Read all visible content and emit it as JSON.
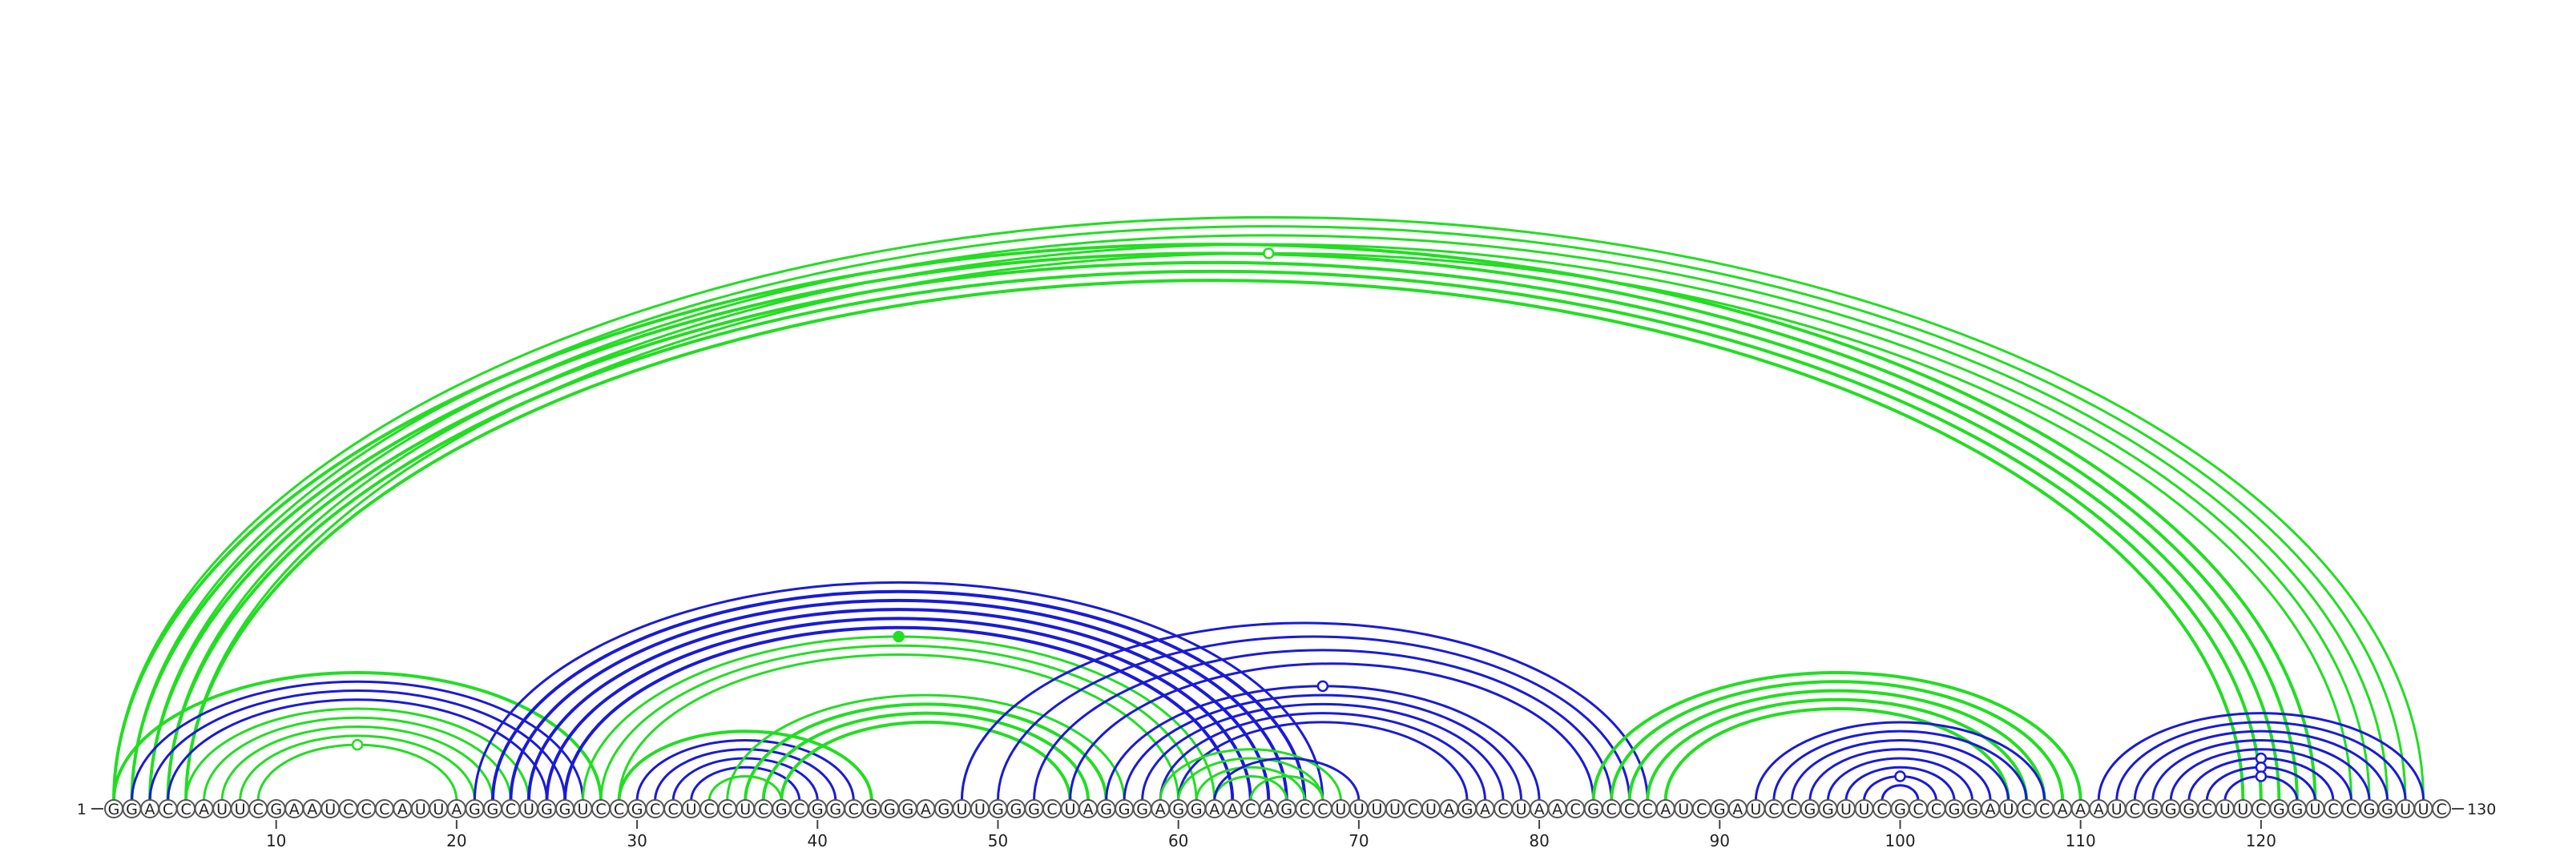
{
  "sequence": "GGACCAUUCGAAUCCCAUUAGGCUGGUCCGCCUCCUCGCGGCGGGAGUUGGGCUAGGGAGGAACAGCCUUUUCUAGACUAACGCCCAUCGAUCCGGUUCGCCGGAUCCAAAUCGGGCUUCGGUCCGGUUC",
  "start_label": "1",
  "end_label": "130",
  "ticks": [
    "10",
    "20",
    "30",
    "40",
    "50",
    "60",
    "70",
    "80",
    "90",
    "100",
    "110",
    "120"
  ],
  "colors": {
    "green": "#22dd22",
    "blue": "#1a1ad8"
  },
  "arcs": [
    {
      "i": 1,
      "j": 129,
      "c": "green",
      "w": 3
    },
    {
      "i": 2,
      "j": 128,
      "c": "green",
      "w": 3
    },
    {
      "i": 3,
      "j": 127,
      "c": "green",
      "w": 3
    },
    {
      "i": 4,
      "j": 126,
      "c": "green",
      "w": 3
    },
    {
      "i": 5,
      "j": 125,
      "c": "green",
      "w": 3
    },
    {
      "i": 1,
      "j": 123,
      "c": "green",
      "w": 4
    },
    {
      "i": 2,
      "j": 122,
      "c": "green",
      "w": 4
    },
    {
      "i": 3,
      "j": 121,
      "c": "green",
      "w": 4
    },
    {
      "i": 4,
      "j": 120,
      "c": "green",
      "w": 4
    },
    {
      "i": 5,
      "j": 119,
      "c": "green",
      "w": 4
    },
    {
      "i": 1,
      "j": 28,
      "c": "green",
      "w": 4
    },
    {
      "i": 2,
      "j": 27,
      "c": "blue",
      "w": 3
    },
    {
      "i": 3,
      "j": 26,
      "c": "blue",
      "w": 3
    },
    {
      "i": 4,
      "j": 25,
      "c": "blue",
      "w": 3
    },
    {
      "i": 5,
      "j": 24,
      "c": "green",
      "w": 3
    },
    {
      "i": 6,
      "j": 23,
      "c": "green",
      "w": 3
    },
    {
      "i": 7,
      "j": 22,
      "c": "green",
      "w": 3
    },
    {
      "i": 8,
      "j": 21,
      "c": "green",
      "w": 3
    },
    {
      "i": 9,
      "j": 20,
      "c": "green",
      "w": 3
    },
    {
      "i": 21,
      "j": 68,
      "c": "blue",
      "w": 3
    },
    {
      "i": 22,
      "j": 67,
      "c": "blue",
      "w": 4
    },
    {
      "i": 23,
      "j": 66,
      "c": "blue",
      "w": 4
    },
    {
      "i": 24,
      "j": 65,
      "c": "blue",
      "w": 4
    },
    {
      "i": 25,
      "j": 64,
      "c": "blue",
      "w": 4
    },
    {
      "i": 26,
      "j": 63,
      "c": "blue",
      "w": 4
    },
    {
      "i": 27,
      "j": 62,
      "c": "green",
      "w": 3
    },
    {
      "i": 28,
      "j": 61,
      "c": "green",
      "w": 3
    },
    {
      "i": 29,
      "j": 60,
      "c": "green",
      "w": 3
    },
    {
      "i": 29,
      "j": 43,
      "c": "green",
      "w": 4
    },
    {
      "i": 30,
      "j": 42,
      "c": "blue",
      "w": 3
    },
    {
      "i": 31,
      "j": 41,
      "c": "blue",
      "w": 3
    },
    {
      "i": 32,
      "j": 40,
      "c": "blue",
      "w": 3
    },
    {
      "i": 33,
      "j": 39,
      "c": "blue",
      "w": 3
    },
    {
      "i": 34,
      "j": 38,
      "c": "green",
      "w": 3
    },
    {
      "i": 35,
      "j": 57,
      "c": "green",
      "w": 3
    },
    {
      "i": 36,
      "j": 56,
      "c": "green",
      "w": 4
    },
    {
      "i": 37,
      "j": 55,
      "c": "green",
      "w": 4
    },
    {
      "i": 38,
      "j": 54,
      "c": "green",
      "w": 4
    },
    {
      "i": 48,
      "j": 86,
      "c": "blue",
      "w": 3
    },
    {
      "i": 50,
      "j": 85,
      "c": "blue",
      "w": 3
    },
    {
      "i": 52,
      "j": 84,
      "c": "blue",
      "w": 3
    },
    {
      "i": 54,
      "j": 83,
      "c": "blue",
      "w": 3
    },
    {
      "i": 56,
      "j": 80,
      "c": "blue",
      "w": 3
    },
    {
      "i": 57,
      "j": 79,
      "c": "blue",
      "w": 3
    },
    {
      "i": 58,
      "j": 78,
      "c": "blue",
      "w": 3
    },
    {
      "i": 59,
      "j": 77,
      "c": "blue",
      "w": 3
    },
    {
      "i": 60,
      "j": 76,
      "c": "blue",
      "w": 3
    },
    {
      "i": 59,
      "j": 69,
      "c": "green",
      "w": 3
    },
    {
      "i": 60,
      "j": 68,
      "c": "green",
      "w": 3
    },
    {
      "i": 61,
      "j": 67,
      "c": "green",
      "w": 3
    },
    {
      "i": 62,
      "j": 66,
      "c": "green",
      "w": 3
    },
    {
      "i": 62,
      "j": 70,
      "c": "blue",
      "w": 3
    },
    {
      "i": 64,
      "j": 68,
      "c": "green",
      "w": 3
    },
    {
      "i": 83,
      "j": 110,
      "c": "green",
      "w": 4
    },
    {
      "i": 84,
      "j": 109,
      "c": "green",
      "w": 4
    },
    {
      "i": 85,
      "j": 108,
      "c": "green",
      "w": 4
    },
    {
      "i": 86,
      "j": 107,
      "c": "green",
      "w": 4
    },
    {
      "i": 87,
      "j": 106,
      "c": "green",
      "w": 4
    },
    {
      "i": 92,
      "j": 108,
      "c": "blue",
      "w": 3
    },
    {
      "i": 93,
      "j": 107,
      "c": "blue",
      "w": 3
    },
    {
      "i": 94,
      "j": 106,
      "c": "blue",
      "w": 3
    },
    {
      "i": 95,
      "j": 105,
      "c": "blue",
      "w": 3
    },
    {
      "i": 96,
      "j": 104,
      "c": "blue",
      "w": 3
    },
    {
      "i": 97,
      "j": 103,
      "c": "blue",
      "w": 3
    },
    {
      "i": 98,
      "j": 102,
      "c": "blue",
      "w": 3
    },
    {
      "i": 99,
      "j": 101,
      "c": "blue",
      "w": 3
    },
    {
      "i": 111,
      "j": 129,
      "c": "blue",
      "w": 3
    },
    {
      "i": 112,
      "j": 128,
      "c": "blue",
      "w": 3
    },
    {
      "i": 113,
      "j": 127,
      "c": "blue",
      "w": 3
    },
    {
      "i": 114,
      "j": 126,
      "c": "blue",
      "w": 3
    },
    {
      "i": 115,
      "j": 125,
      "c": "blue",
      "w": 3
    },
    {
      "i": 116,
      "j": 124,
      "c": "blue",
      "w": 3
    },
    {
      "i": 117,
      "j": 123,
      "c": "blue",
      "w": 3
    },
    {
      "i": 118,
      "j": 122,
      "c": "blue",
      "w": 3
    }
  ],
  "markers": [
    {
      "i": 5,
      "j": 125,
      "c": "green",
      "filled": false
    },
    {
      "i": 9,
      "j": 20,
      "c": "green",
      "filled": false
    },
    {
      "i": 27,
      "j": 62,
      "c": "green",
      "filled": true
    },
    {
      "i": 56,
      "j": 80,
      "c": "blue",
      "filled": false
    },
    {
      "i": 98,
      "j": 102,
      "c": "blue",
      "filled": false
    },
    {
      "i": 116,
      "j": 124,
      "c": "blue",
      "filled": false
    },
    {
      "i": 117,
      "j": 123,
      "c": "blue",
      "filled": false
    },
    {
      "i": 118,
      "j": 122,
      "c": "blue",
      "filled": false
    }
  ]
}
